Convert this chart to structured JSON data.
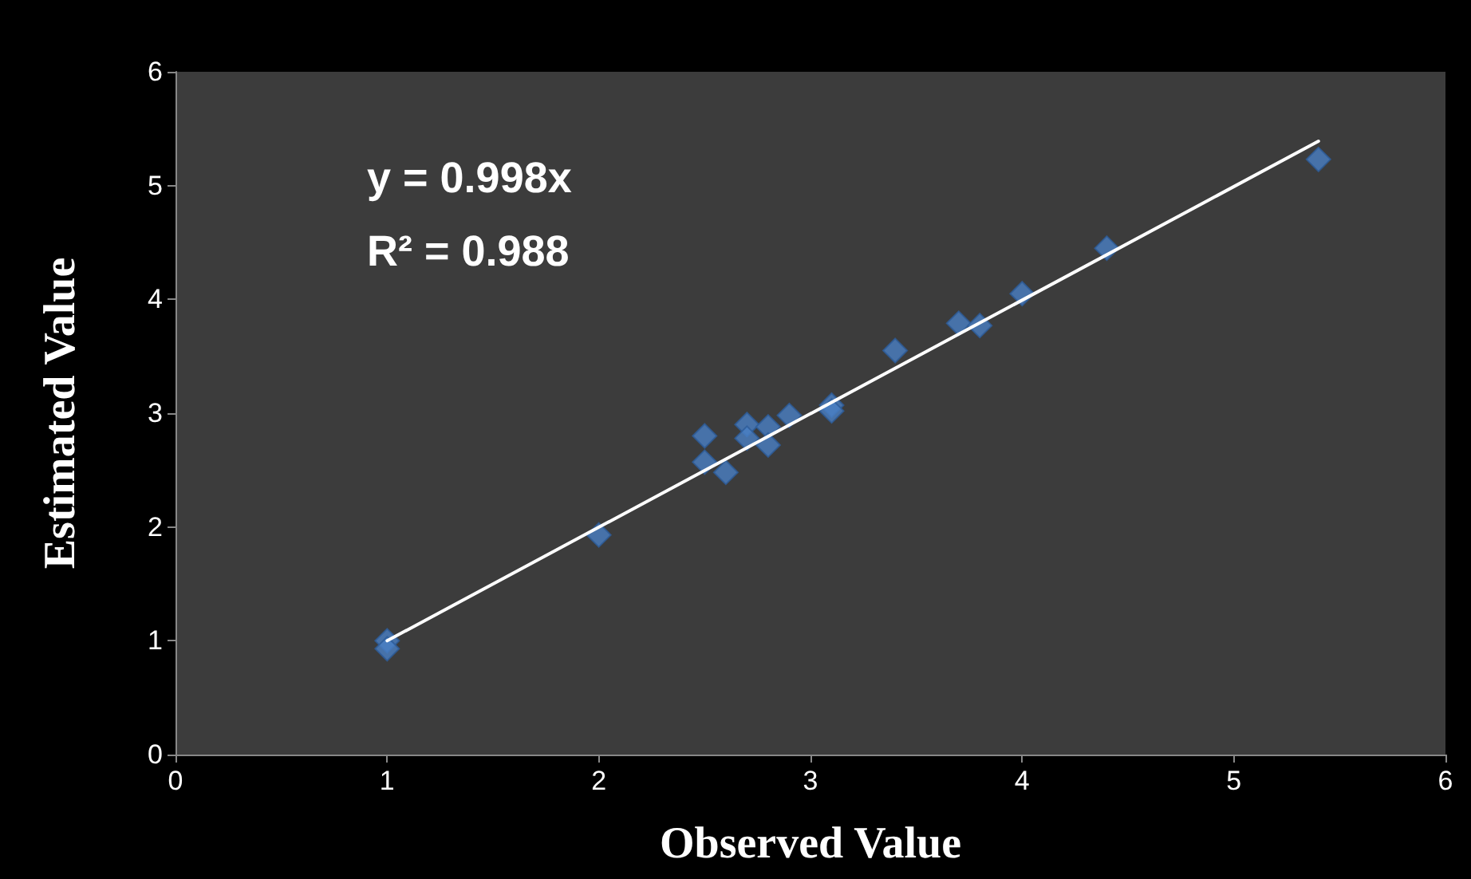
{
  "chart_data": {
    "type": "scatter",
    "xlabel": "Observed Value",
    "ylabel": "Estimated Value",
    "annotations": [
      "y = 0.998x",
      "R² = 0.988"
    ],
    "xlim": [
      0,
      6
    ],
    "ylim": [
      0,
      6
    ],
    "xticks": [
      0,
      1,
      2,
      3,
      4,
      5,
      6
    ],
    "yticks": [
      0,
      1,
      2,
      3,
      4,
      5,
      6
    ],
    "grid": false,
    "marker": "diamond",
    "series": [
      {
        "color": "#4a7fc4",
        "x": [
          1,
          1,
          2,
          2.5,
          2.5,
          2.6,
          2.7,
          2.7,
          2.8,
          2.8,
          2.9,
          3.1,
          3.1,
          3.4,
          3.7,
          3.8,
          4,
          4.4,
          5.4
        ],
        "values": [
          1.0,
          0.93,
          1.93,
          2.8,
          2.57,
          2.48,
          2.9,
          2.78,
          2.88,
          2.72,
          2.98,
          3.07,
          3.02,
          3.55,
          3.79,
          3.77,
          4.05,
          4.45,
          5.23
        ]
      },
      {
        "type": "line",
        "color": "#ffffff",
        "marker": "none",
        "line_style": "solid",
        "x": [
          1,
          5.4
        ],
        "values": [
          1.0,
          5.39
        ]
      }
    ]
  }
}
